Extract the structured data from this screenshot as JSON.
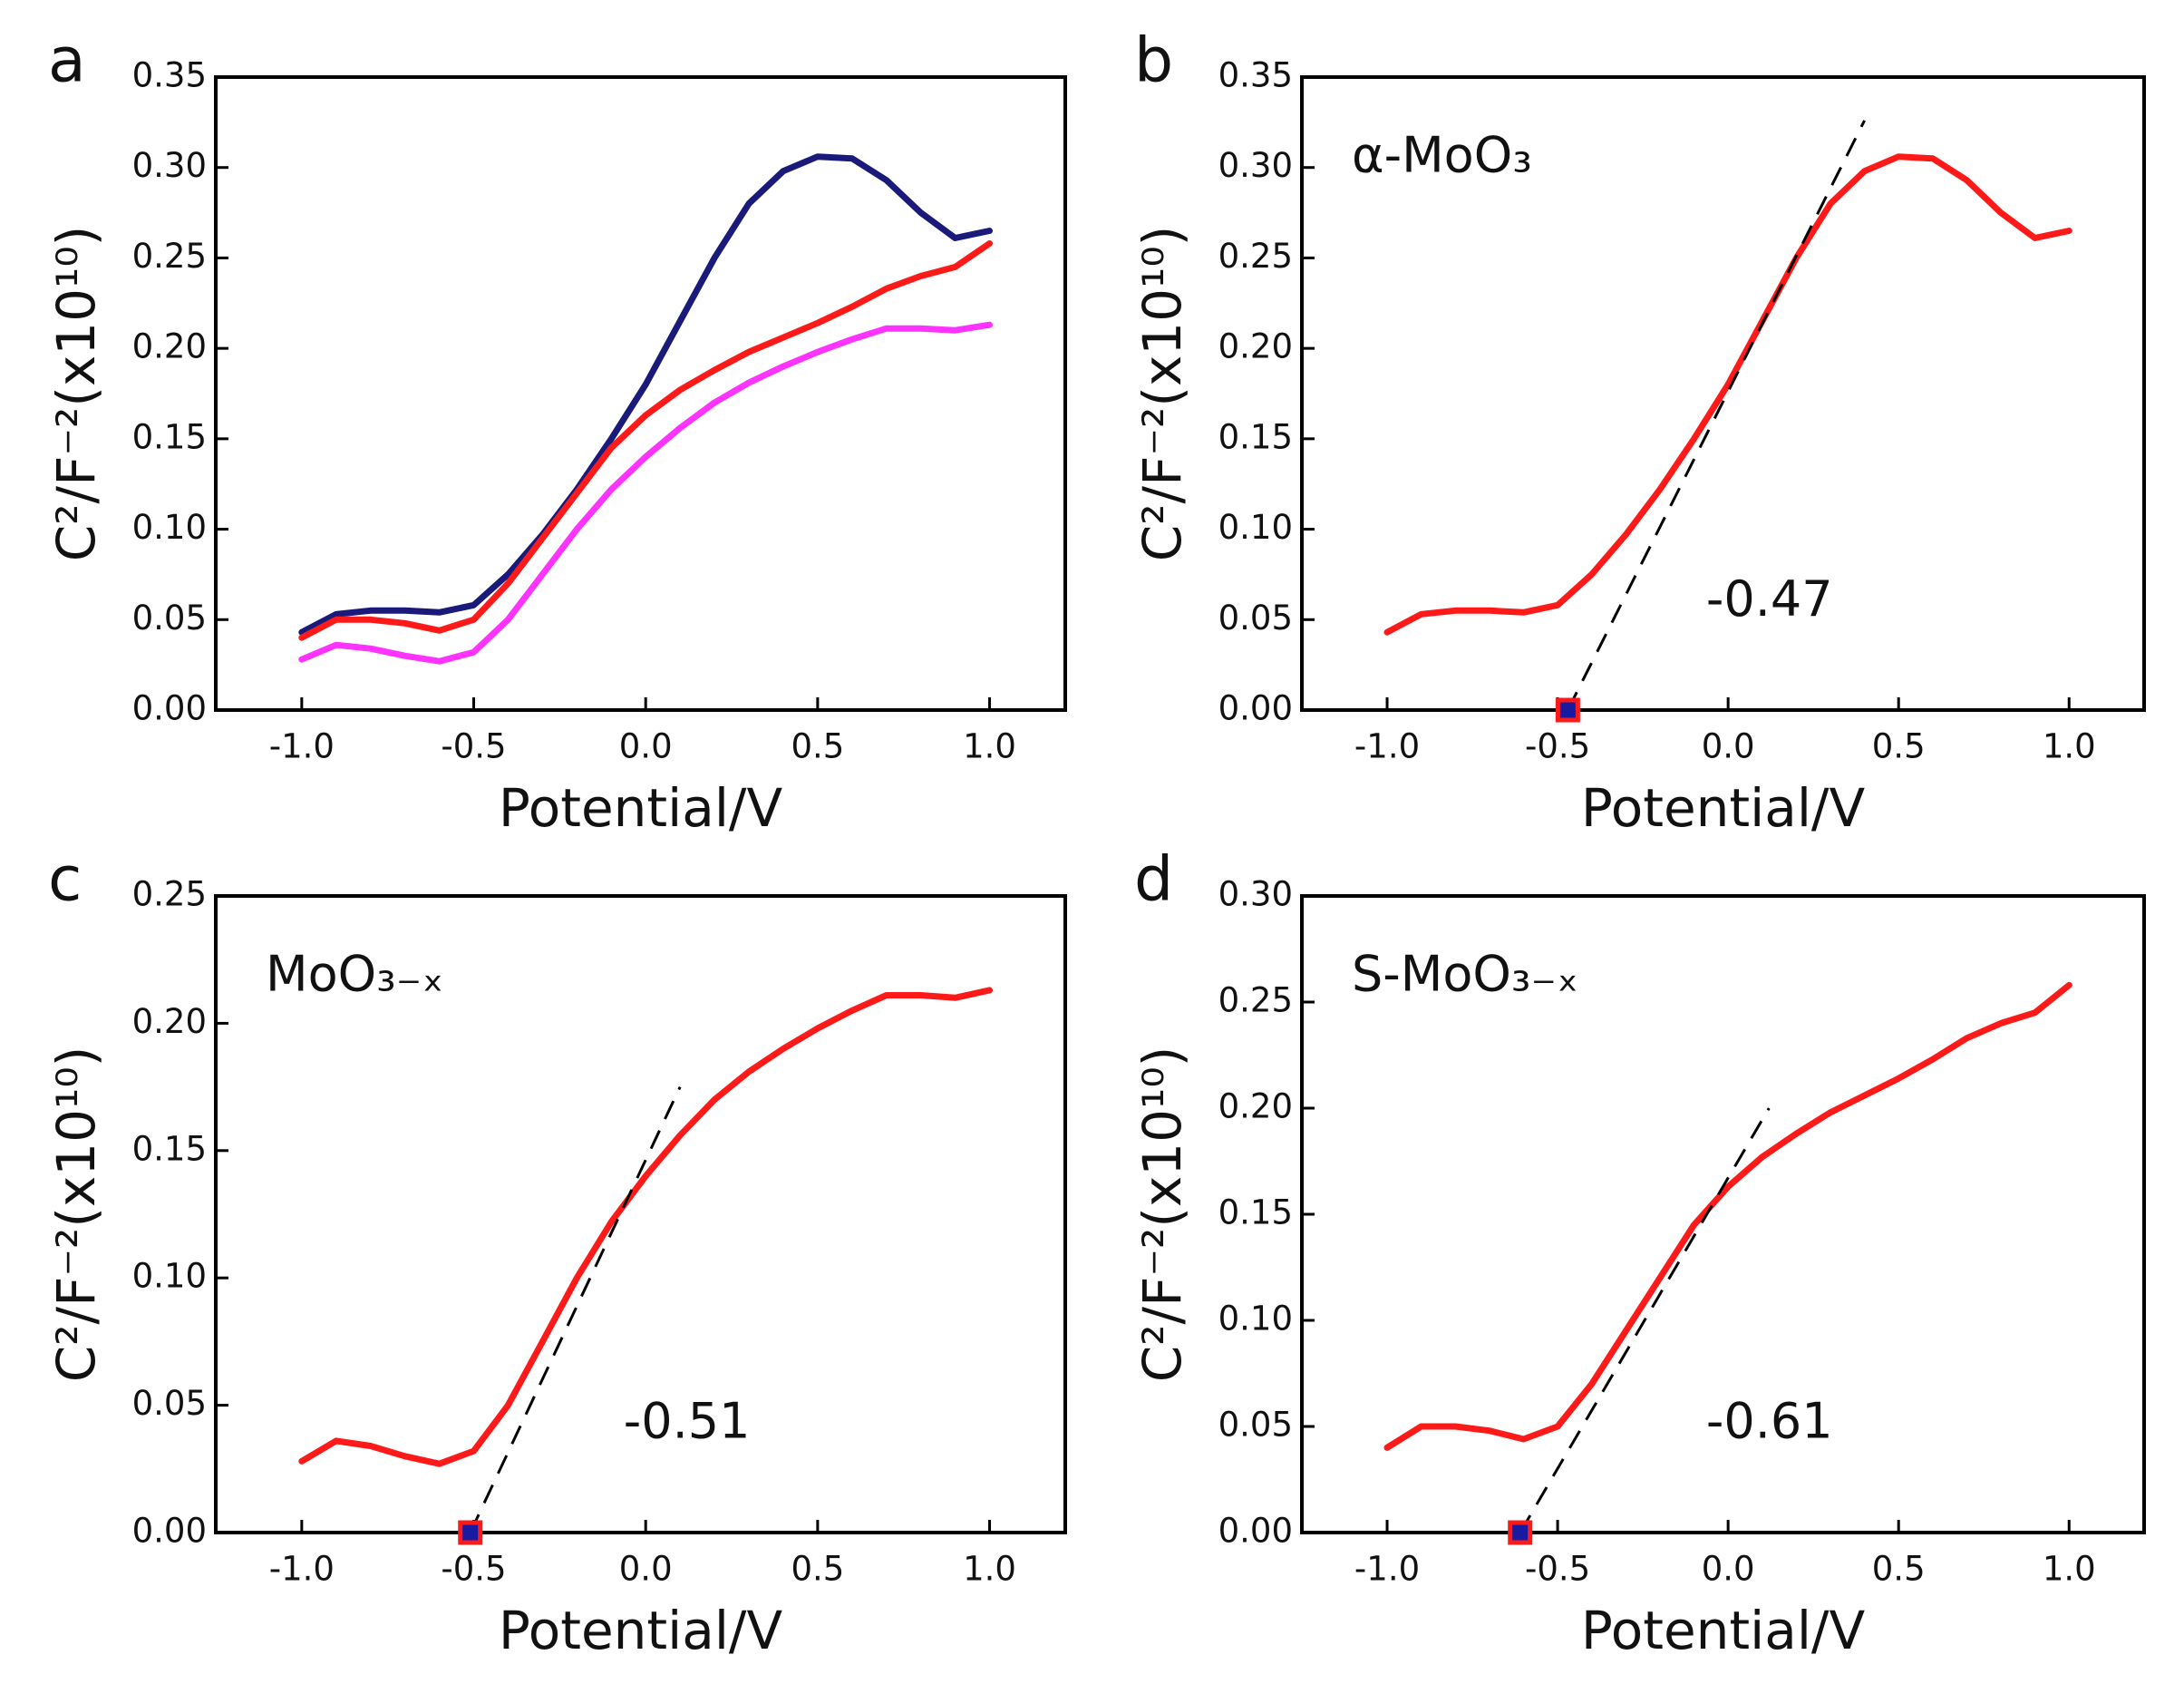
{
  "chart_data": [
    {
      "type": "line",
      "panel_label": "a",
      "xlabel": "Potential/V",
      "ylabel": "C²/F⁻²(x10¹⁰)",
      "x": [
        -1,
        -0.9,
        -0.8,
        -0.7,
        -0.6,
        -0.5,
        -0.4,
        -0.3,
        -0.2,
        -0.1,
        0,
        0.1,
        0.2,
        0.3,
        0.4,
        0.5,
        0.6,
        0.7,
        0.8,
        0.9,
        1
      ],
      "series": [
        {
          "color": "#1a1a7a",
          "values": [
            0.043,
            0.053,
            0.055,
            0.055,
            0.054,
            0.058,
            0.075,
            0.097,
            0.122,
            0.15,
            0.18,
            0.215,
            0.25,
            0.28,
            0.298,
            0.306,
            0.305,
            0.293,
            0.275,
            0.261,
            0.265
          ]
        },
        {
          "color": "#ff1a1a",
          "values": [
            0.04,
            0.05,
            0.05,
            0.048,
            0.044,
            0.05,
            0.07,
            0.095,
            0.12,
            0.145,
            0.163,
            0.177,
            0.188,
            0.198,
            0.206,
            0.214,
            0.223,
            0.233,
            0.24,
            0.245,
            0.258
          ]
        },
        {
          "color": "#ff33ff",
          "values": [
            0.028,
            0.036,
            0.034,
            0.03,
            0.027,
            0.032,
            0.05,
            0.075,
            0.1,
            0.122,
            0.14,
            0.156,
            0.17,
            0.181,
            0.19,
            0.198,
            0.205,
            0.211,
            0.211,
            0.21,
            0.213
          ]
        }
      ],
      "xlim": [
        -1.25,
        1.22
      ],
      "ylim": [
        0,
        0.35
      ],
      "xticks": [
        {
          "value": -1,
          "label": "-1.0"
        },
        {
          "value": -0.5,
          "label": "-0.5"
        },
        {
          "value": 0,
          "label": "0.0"
        },
        {
          "value": 0.5,
          "label": "0.5"
        },
        {
          "value": 1,
          "label": "1.0"
        }
      ],
      "yticks": [
        {
          "value": 0,
          "label": "0.00"
        },
        {
          "value": 0.05,
          "label": "0.05"
        },
        {
          "value": 0.1,
          "label": "0.10"
        },
        {
          "value": 0.15,
          "label": "0.15"
        },
        {
          "value": 0.2,
          "label": "0.20"
        },
        {
          "value": 0.25,
          "label": "0.25"
        },
        {
          "value": 0.3,
          "label": "0.30"
        },
        {
          "value": 0.35,
          "label": "0.35"
        }
      ]
    },
    {
      "type": "line",
      "panel_label": "b",
      "xlabel": "Potential/V",
      "ylabel": "C²/F⁻²(x10¹⁰)",
      "annotation": "α-MoO₃",
      "x": [
        -1,
        -0.9,
        -0.8,
        -0.7,
        -0.6,
        -0.5,
        -0.4,
        -0.3,
        -0.2,
        -0.1,
        0,
        0.1,
        0.2,
        0.3,
        0.4,
        0.5,
        0.6,
        0.7,
        0.8,
        0.9,
        1
      ],
      "series": [
        {
          "color": "#ff1a1a",
          "values": [
            0.043,
            0.053,
            0.055,
            0.055,
            0.054,
            0.058,
            0.075,
            0.097,
            0.122,
            0.15,
            0.18,
            0.215,
            0.25,
            0.28,
            0.298,
            0.306,
            0.305,
            0.293,
            0.275,
            0.261,
            0.265
          ]
        }
      ],
      "fit": {
        "x": [
          -0.47,
          0.4
        ],
        "y": [
          0,
          0.326
        ]
      },
      "intercept": {
        "value": -0.47,
        "label": "-0.47"
      },
      "xlim": [
        -1.25,
        1.22
      ],
      "ylim": [
        0,
        0.35
      ],
      "xticks": [
        {
          "value": -1,
          "label": "-1.0"
        },
        {
          "value": -0.5,
          "label": "-0.5"
        },
        {
          "value": 0,
          "label": "0.0"
        },
        {
          "value": 0.5,
          "label": "0.5"
        },
        {
          "value": 1,
          "label": "1.0"
        }
      ],
      "yticks": [
        {
          "value": 0,
          "label": "0.00"
        },
        {
          "value": 0.05,
          "label": "0.05"
        },
        {
          "value": 0.1,
          "label": "0.10"
        },
        {
          "value": 0.15,
          "label": "0.15"
        },
        {
          "value": 0.2,
          "label": "0.20"
        },
        {
          "value": 0.25,
          "label": "0.25"
        },
        {
          "value": 0.3,
          "label": "0.30"
        },
        {
          "value": 0.35,
          "label": "0.35"
        }
      ]
    },
    {
      "type": "line",
      "panel_label": "c",
      "xlabel": "Potential/V",
      "ylabel": "C²/F⁻²(x10¹⁰)",
      "annotation": "MoO₃₋ₓ",
      "x": [
        -1,
        -0.9,
        -0.8,
        -0.7,
        -0.6,
        -0.5,
        -0.4,
        -0.3,
        -0.2,
        -0.1,
        0,
        0.1,
        0.2,
        0.3,
        0.4,
        0.5,
        0.6,
        0.7,
        0.8,
        0.9,
        1
      ],
      "series": [
        {
          "color": "#ff1a1a",
          "values": [
            0.028,
            0.036,
            0.034,
            0.03,
            0.027,
            0.032,
            0.05,
            0.075,
            0.1,
            0.122,
            0.14,
            0.156,
            0.17,
            0.181,
            0.19,
            0.198,
            0.205,
            0.211,
            0.211,
            0.21,
            0.213
          ]
        }
      ],
      "fit": {
        "x": [
          -0.51,
          0.1
        ],
        "y": [
          0,
          0.175
        ]
      },
      "intercept": {
        "value": -0.51,
        "label": "-0.51"
      },
      "xlim": [
        -1.25,
        1.22
      ],
      "ylim": [
        0,
        0.25
      ],
      "xticks": [
        {
          "value": -1,
          "label": "-1.0"
        },
        {
          "value": -0.5,
          "label": "-0.5"
        },
        {
          "value": 0,
          "label": "0.0"
        },
        {
          "value": 0.5,
          "label": "0.5"
        },
        {
          "value": 1,
          "label": "1.0"
        }
      ],
      "yticks": [
        {
          "value": 0,
          "label": "0.00"
        },
        {
          "value": 0.05,
          "label": "0.05"
        },
        {
          "value": 0.1,
          "label": "0.10"
        },
        {
          "value": 0.15,
          "label": "0.15"
        },
        {
          "value": 0.2,
          "label": "0.20"
        },
        {
          "value": 0.25,
          "label": "0.25"
        }
      ]
    },
    {
      "type": "line",
      "panel_label": "d",
      "xlabel": "Potential/V",
      "ylabel": "C²/F⁻²(x10¹⁰)",
      "annotation": "S-MoO₃₋ₓ",
      "x": [
        -1,
        -0.9,
        -0.8,
        -0.7,
        -0.6,
        -0.5,
        -0.4,
        -0.3,
        -0.2,
        -0.1,
        0,
        0.1,
        0.2,
        0.3,
        0.4,
        0.5,
        0.6,
        0.7,
        0.8,
        0.9,
        1
      ],
      "series": [
        {
          "color": "#ff1a1a",
          "values": [
            0.04,
            0.05,
            0.05,
            0.048,
            0.044,
            0.05,
            0.07,
            0.095,
            0.12,
            0.145,
            0.163,
            0.177,
            0.188,
            0.198,
            0.206,
            0.214,
            0.223,
            0.233,
            0.24,
            0.245,
            0.258
          ]
        }
      ],
      "fit": {
        "x": [
          -0.61,
          0.12
        ],
        "y": [
          0,
          0.2
        ]
      },
      "intercept": {
        "value": -0.61,
        "label": "-0.61"
      },
      "xlim": [
        -1.25,
        1.22
      ],
      "ylim": [
        0,
        0.3
      ],
      "xticks": [
        {
          "value": -1,
          "label": "-1.0"
        },
        {
          "value": -0.5,
          "label": "-0.5"
        },
        {
          "value": 0,
          "label": "0.0"
        },
        {
          "value": 0.5,
          "label": "0.5"
        },
        {
          "value": 1,
          "label": "1.0"
        }
      ],
      "yticks": [
        {
          "value": 0,
          "label": "0.00"
        },
        {
          "value": 0.05,
          "label": "0.05"
        },
        {
          "value": 0.1,
          "label": "0.10"
        },
        {
          "value": 0.15,
          "label": "0.15"
        },
        {
          "value": 0.2,
          "label": "0.20"
        },
        {
          "value": 0.25,
          "label": "0.25"
        },
        {
          "value": 0.3,
          "label": "0.30"
        }
      ]
    }
  ]
}
